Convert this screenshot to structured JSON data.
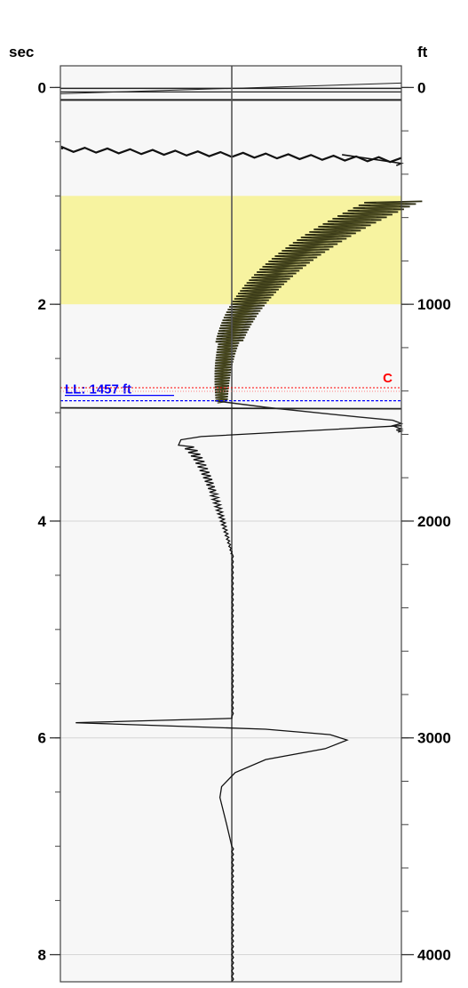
{
  "chart_data": {
    "type": "line",
    "title": "",
    "left_axis": {
      "label": "sec",
      "ylim": [
        -0.2,
        8.25
      ],
      "ticks": [
        0,
        2,
        4,
        6,
        8
      ],
      "tick_labels": [
        "0",
        "2",
        "4",
        "6",
        "8"
      ],
      "minor_step": 0.5
    },
    "right_axis": {
      "label": "ft",
      "ylim": [
        -100,
        4125
      ],
      "ticks": [
        0,
        1000,
        2000,
        3000,
        4000
      ],
      "tick_labels": [
        "0",
        "1000",
        "2000",
        "3000",
        "4000"
      ],
      "minor_step": 200
    },
    "x_center": 0,
    "xlim": [
      -1,
      1
    ],
    "grid_lines_sec": [
      4,
      6,
      8
    ],
    "highlight_band_sec": [
      1.0,
      2.0
    ],
    "highlight_color": "#f7f3a0",
    "background_color": "#f7f7f7",
    "center_line_color": "#555555",
    "markers": [
      {
        "name": "LL",
        "label": "LL: 1457 ft",
        "depth_ft": 1457,
        "time_sec": 2.89,
        "color": "#0000ff",
        "style": "dashed"
      },
      {
        "name": "C",
        "label": "C",
        "time_sec": 2.77,
        "color": "#ff0000",
        "style": "dashed"
      }
    ],
    "series": [
      {
        "x": [
          -0.1,
          0.2,
          0.5,
          0.75,
          0.95,
          1.0,
          0.95,
          0.98,
          1.0,
          0.97,
          1.0,
          0.98
        ],
        "y": [
          2.89,
          2.95,
          3.0,
          3.04,
          3.07,
          3.1,
          3.12,
          3.14,
          3.15,
          3.16,
          3.17,
          3.18
        ]
      }
    ]
  }
}
